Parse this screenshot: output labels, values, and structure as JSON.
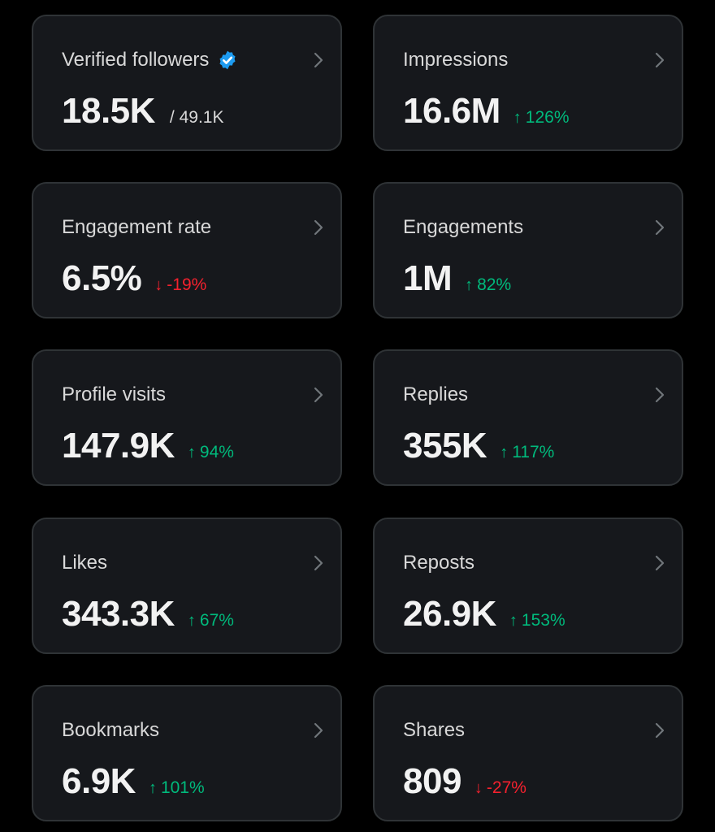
{
  "colors": {
    "background": "#000000",
    "card": "#16181c",
    "border": "#2f3336",
    "positive": "#00ba7c",
    "negative": "#f4212e",
    "verified": "#1d9bf0"
  },
  "icons": {
    "verified": "verified-badge-icon",
    "chevron": "chevron-right-icon",
    "up": "arrow-up-icon",
    "down": "arrow-down-icon"
  },
  "cards": [
    {
      "label": "Verified followers",
      "value": "18.5K",
      "total": "/ 49.1K"
    },
    {
      "label": "Impressions",
      "value": "16.6M",
      "change": "126%",
      "direction": "up",
      "arrow": "↑"
    },
    {
      "label": "Engagement rate",
      "value": "6.5%",
      "change": "-19%",
      "direction": "down",
      "arrow": "↓"
    },
    {
      "label": "Engagements",
      "value": "1M",
      "change": "82%",
      "direction": "up",
      "arrow": "↑"
    },
    {
      "label": "Profile visits",
      "value": "147.9K",
      "change": "94%",
      "direction": "up",
      "arrow": "↑"
    },
    {
      "label": "Replies",
      "value": "355K",
      "change": "117%",
      "direction": "up",
      "arrow": "↑"
    },
    {
      "label": "Likes",
      "value": "343.3K",
      "change": "67%",
      "direction": "up",
      "arrow": "↑"
    },
    {
      "label": "Reposts",
      "value": "26.9K",
      "change": "153%",
      "direction": "up",
      "arrow": "↑"
    },
    {
      "label": "Bookmarks",
      "value": "6.9K",
      "change": "101%",
      "direction": "up",
      "arrow": "↑"
    },
    {
      "label": "Shares",
      "value": "809",
      "change": "-27%",
      "direction": "down",
      "arrow": "↓"
    }
  ]
}
